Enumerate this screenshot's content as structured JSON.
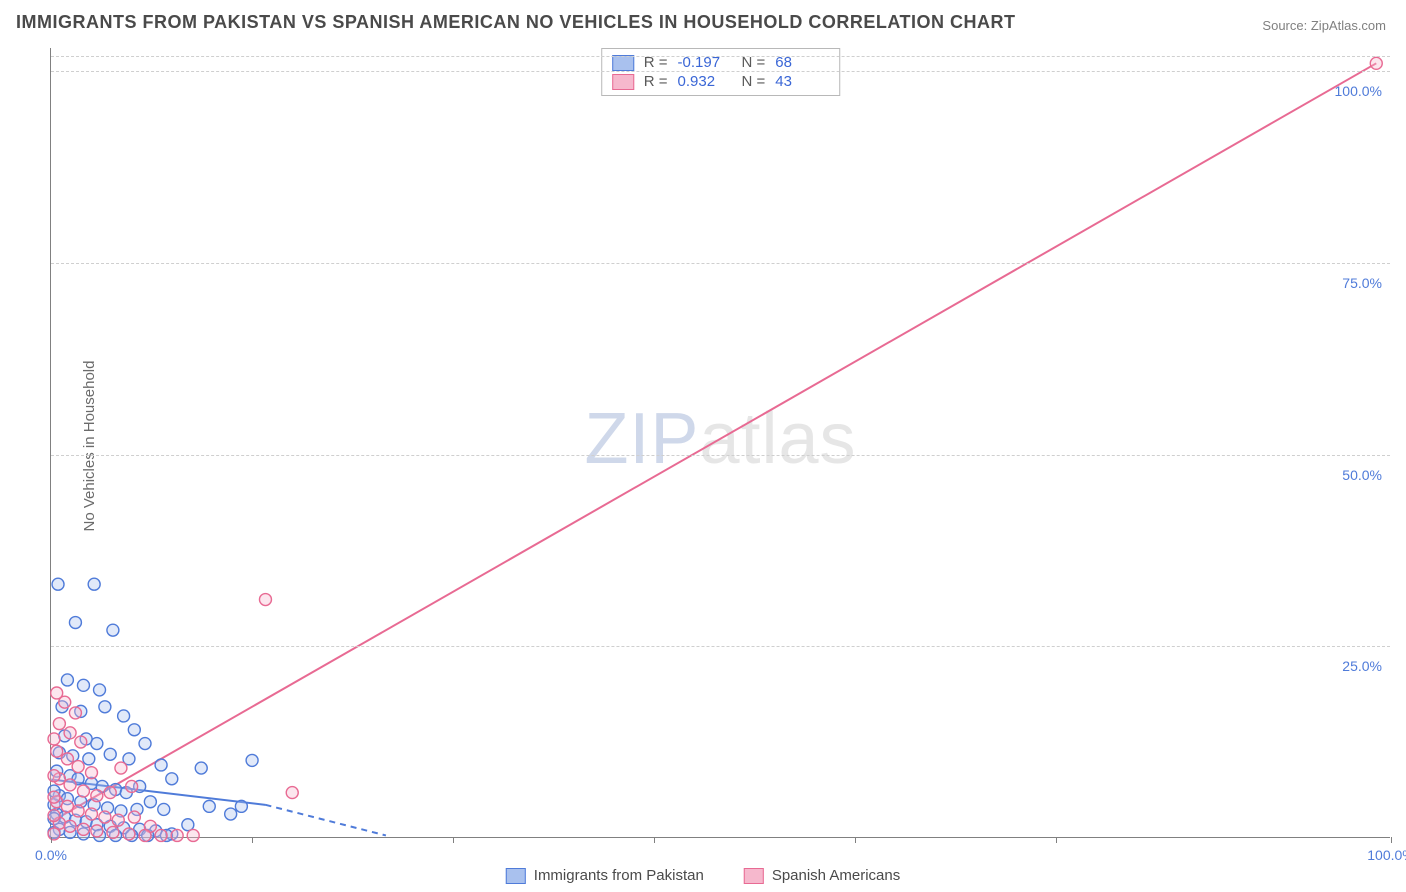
{
  "title": "IMMIGRANTS FROM PAKISTAN VS SPANISH AMERICAN NO VEHICLES IN HOUSEHOLD CORRELATION CHART",
  "source_label": "Source:",
  "source_value": "ZipAtlas.com",
  "ylabel": "No Vehicles in Household",
  "watermark_a": "ZIP",
  "watermark_b": "atlas",
  "chart": {
    "type": "scatter-with-regression",
    "background": "#ffffff",
    "grid_color": "#cfcfcf",
    "axis_color": "#808080",
    "tick_label_color": "#4f7bd9",
    "tick_fontsize": 14,
    "title_color": "#4a4a4a",
    "title_fontsize": 18,
    "ylabel_color": "#6b6b6b",
    "ylabel_fontsize": 15,
    "xlim": [
      0,
      100
    ],
    "ylim": [
      0,
      103
    ],
    "xticks": [
      0,
      15,
      30,
      45,
      60,
      75,
      100
    ],
    "xtick_labels": {
      "0": "0.0%",
      "100": "100.0%"
    },
    "yticks": [
      25,
      50,
      75,
      100
    ],
    "ytick_labels": {
      "25": "25.0%",
      "50": "50.0%",
      "75": "75.0%",
      "100": "100.0%"
    },
    "marker_radius": 6,
    "marker_fill_opacity": 0.35,
    "marker_stroke_width": 1.4,
    "line_width": 2,
    "dash_pattern": "6 5",
    "series": [
      {
        "name": "Immigrants from Pakistan",
        "color_stroke": "#4f7bd9",
        "color_fill": "#a9c1ee",
        "r_label": "R =",
        "r_value": "-0.197",
        "n_label": "N =",
        "n_value": "68",
        "regression_solid": {
          "x1": 0,
          "y1": 7.5,
          "x2": 16,
          "y2": 4.2
        },
        "regression_dash": {
          "x1": 16,
          "y1": 4.2,
          "x2": 25,
          "y2": 0.2
        },
        "points": [
          [
            0.5,
            33
          ],
          [
            3.2,
            33
          ],
          [
            1.8,
            28
          ],
          [
            4.6,
            27
          ],
          [
            1.2,
            20.5
          ],
          [
            2.4,
            19.8
          ],
          [
            3.6,
            19.2
          ],
          [
            0.8,
            17
          ],
          [
            2.2,
            16.4
          ],
          [
            4.0,
            17
          ],
          [
            5.4,
            15.8
          ],
          [
            6.2,
            14
          ],
          [
            1.0,
            13.2
          ],
          [
            2.6,
            12.8
          ],
          [
            3.4,
            12.2
          ],
          [
            0.6,
            11
          ],
          [
            1.6,
            10.6
          ],
          [
            2.8,
            10.2
          ],
          [
            4.4,
            10.8
          ],
          [
            5.8,
            10.2
          ],
          [
            7.0,
            12.2
          ],
          [
            8.2,
            9.4
          ],
          [
            9.0,
            7.6
          ],
          [
            11.2,
            9.0
          ],
          [
            0.4,
            8.6
          ],
          [
            1.4,
            8.0
          ],
          [
            2.0,
            7.6
          ],
          [
            3.0,
            7.0
          ],
          [
            3.8,
            6.6
          ],
          [
            4.8,
            6.2
          ],
          [
            5.6,
            5.8
          ],
          [
            6.6,
            6.6
          ],
          [
            0.6,
            5.4
          ],
          [
            1.2,
            5.0
          ],
          [
            2.2,
            4.6
          ],
          [
            3.2,
            4.2
          ],
          [
            4.2,
            3.8
          ],
          [
            5.2,
            3.4
          ],
          [
            6.4,
            3.6
          ],
          [
            7.4,
            4.6
          ],
          [
            8.4,
            3.6
          ],
          [
            0.4,
            3.0
          ],
          [
            1.0,
            2.6
          ],
          [
            1.8,
            2.2
          ],
          [
            2.6,
            2.0
          ],
          [
            3.4,
            1.6
          ],
          [
            4.4,
            1.4
          ],
          [
            5.4,
            1.2
          ],
          [
            6.6,
            1.0
          ],
          [
            7.8,
            0.8
          ],
          [
            9.0,
            0.4
          ],
          [
            10.2,
            1.6
          ],
          [
            0.6,
            1.0
          ],
          [
            1.4,
            0.6
          ],
          [
            2.4,
            0.4
          ],
          [
            3.6,
            0.2
          ],
          [
            4.8,
            0.2
          ],
          [
            6.0,
            0.2
          ],
          [
            7.2,
            0.2
          ],
          [
            8.6,
            0.2
          ],
          [
            0.2,
            6.0
          ],
          [
            0.2,
            4.2
          ],
          [
            0.2,
            2.4
          ],
          [
            0.2,
            0.6
          ],
          [
            11.8,
            4.0
          ],
          [
            13.4,
            3.0
          ],
          [
            15.0,
            10.0
          ],
          [
            14.2,
            4.0
          ]
        ]
      },
      {
        "name": "Spanish Americans",
        "color_stroke": "#e86a93",
        "color_fill": "#f6b8cd",
        "r_label": "R =",
        "r_value": "0.932",
        "n_label": "N =",
        "n_value": "43",
        "regression_solid": {
          "x1": 0,
          "y1": 2.0,
          "x2": 99,
          "y2": 101
        },
        "regression_dash": null,
        "points": [
          [
            99,
            101
          ],
          [
            16.0,
            31
          ],
          [
            18.0,
            5.8
          ],
          [
            0.4,
            18.8
          ],
          [
            1.0,
            17.6
          ],
          [
            1.8,
            16.2
          ],
          [
            0.6,
            14.8
          ],
          [
            1.4,
            13.6
          ],
          [
            2.2,
            12.4
          ],
          [
            0.4,
            11.2
          ],
          [
            1.2,
            10.2
          ],
          [
            2.0,
            9.2
          ],
          [
            3.0,
            8.4
          ],
          [
            0.6,
            7.6
          ],
          [
            1.4,
            6.8
          ],
          [
            2.4,
            6.0
          ],
          [
            3.4,
            5.4
          ],
          [
            4.4,
            5.8
          ],
          [
            0.4,
            4.6
          ],
          [
            1.2,
            4.0
          ],
          [
            2.0,
            3.4
          ],
          [
            3.0,
            3.0
          ],
          [
            4.0,
            2.6
          ],
          [
            5.0,
            2.2
          ],
          [
            6.2,
            2.6
          ],
          [
            7.4,
            1.4
          ],
          [
            0.6,
            1.8
          ],
          [
            1.4,
            1.4
          ],
          [
            2.4,
            1.0
          ],
          [
            3.4,
            0.8
          ],
          [
            4.6,
            0.6
          ],
          [
            5.8,
            0.4
          ],
          [
            7.0,
            0.2
          ],
          [
            8.2,
            0.2
          ],
          [
            9.4,
            0.2
          ],
          [
            10.6,
            0.2
          ],
          [
            0.2,
            0.4
          ],
          [
            0.2,
            2.8
          ],
          [
            0.2,
            5.2
          ],
          [
            0.2,
            8.0
          ],
          [
            0.2,
            12.8
          ],
          [
            6.0,
            6.6
          ],
          [
            5.2,
            9.0
          ]
        ]
      }
    ]
  },
  "legend_bottom": [
    {
      "swatch_fill": "#a9c1ee",
      "swatch_stroke": "#4f7bd9",
      "label": "Immigrants from Pakistan"
    },
    {
      "swatch_fill": "#f6b8cd",
      "swatch_stroke": "#e86a93",
      "label": "Spanish Americans"
    }
  ]
}
